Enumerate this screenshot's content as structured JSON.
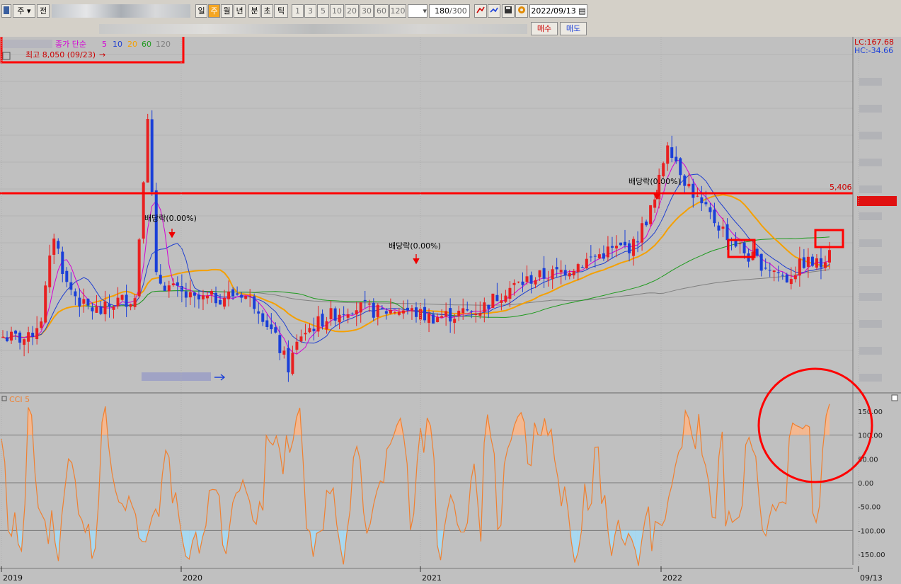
{
  "toolbar": {
    "period_first": "주",
    "prev_label": "전",
    "periods": [
      "일",
      "주",
      "월",
      "년",
      "분",
      "초",
      "틱"
    ],
    "active_period": "주",
    "intervals": [
      "1",
      "3",
      "5",
      "10",
      "20",
      "30",
      "60",
      "120"
    ],
    "count": "180",
    "count_total": "/300",
    "date": "2022/09/13",
    "buy": "매수",
    "sell": "매도"
  },
  "legend": {
    "ma_title": "종가 단순",
    "ma_periods": [
      {
        "label": "5",
        "color": "#d400d4"
      },
      {
        "label": "10",
        "color": "#1f3fd0"
      },
      {
        "label": "20",
        "color": "#f5a000"
      },
      {
        "label": "60",
        "color": "#1f9a1f"
      },
      {
        "label": "120",
        "color": "#808080"
      }
    ],
    "high_note": "최고 8,050 (09/23)",
    "arrow_glyph": "→"
  },
  "indicators": {
    "lc": "LC:167.68",
    "hc": "HC:-34.66",
    "cci_title": "CCI 5"
  },
  "colors": {
    "up": "#e82020",
    "down": "#1a3fd8",
    "cci_line": "#f08030",
    "cci_high": "#f5b890",
    "cci_low": "#a8d8f0",
    "annotation": "#ff0000"
  },
  "chart_data": [
    {
      "type": "candlestick",
      "title": "",
      "price_line": {
        "value": 5406,
        "label": "5,406"
      },
      "annotations": [
        {
          "text": "배당락(0.00%)",
          "date": "2019-10-22"
        },
        {
          "text": "배당락(0.00%)",
          "date": "2020-12-22"
        },
        {
          "text": "배당락(0.00%)",
          "date": "2021-09-28"
        }
      ],
      "x_ticks": [
        "2019",
        "2020",
        "2021",
        "2022",
        "09/13"
      ],
      "y_tick_labels_blurred": true,
      "ma_periods": [
        5,
        10,
        20,
        60,
        120
      ]
    },
    {
      "type": "line",
      "title": "CCI 5",
      "y_ticks": [
        "150.00",
        "100.00",
        "50.00",
        "0.00",
        "-50.00",
        "-100.00",
        "-150.00"
      ],
      "ylim": [
        -175,
        175
      ],
      "values": [
        92,
        44,
        -100,
        -112,
        -62,
        -128,
        -143,
        -45,
        158,
        142,
        21,
        -52,
        -66,
        -80,
        -128,
        -58,
        -125,
        -164,
        -69,
        -8,
        50,
        42,
        6,
        -65,
        -78,
        -104,
        -86,
        -159,
        -137,
        -38,
        127,
        160,
        75,
        20,
        -16,
        -40,
        -44,
        -58,
        -28,
        -48,
        -66,
        -115,
        -123,
        -124,
        -98,
        -70,
        -55,
        -71,
        18,
        68,
        54,
        -43,
        -20,
        -75,
        -120,
        -154,
        -160,
        -122,
        -104,
        -148,
        -114,
        -90,
        -16,
        -14,
        -15,
        -28,
        -130,
        -149,
        -95,
        -42,
        -22,
        -17,
        6,
        -18,
        -38,
        -78,
        -87,
        -40,
        -58,
        99,
        86,
        79,
        98,
        68,
        18,
        99,
        63,
        89,
        136,
        157,
        44,
        -96,
        -102,
        -155,
        -106,
        -102,
        -98,
        -16,
        -23,
        -11,
        -87,
        -130,
        -171,
        -107,
        -58,
        53,
        76,
        48,
        -61,
        -106,
        -86,
        -46,
        -17,
        4,
        0,
        71,
        81,
        99,
        121,
        135,
        96,
        40,
        -99,
        -65,
        45,
        115,
        63,
        136,
        119,
        51,
        -130,
        -162,
        -99,
        -58,
        -26,
        -45,
        -87,
        -103,
        -103,
        -84,
        3,
        40,
        -35,
        -123,
        84,
        143,
        94,
        61,
        -98,
        -89,
        39,
        72,
        89,
        120,
        138,
        147,
        126,
        40,
        36,
        126,
        101,
        99,
        135,
        99,
        112,
        48,
        10,
        -49,
        -8,
        -57,
        -124,
        -167,
        -146,
        -101,
        -2,
        -57,
        -43,
        74,
        75,
        -44,
        -26,
        -106,
        -153,
        -109,
        -78,
        -116,
        -130,
        -106,
        -118,
        -140,
        -174,
        -121,
        -76,
        -50,
        -143,
        -81,
        -85,
        -90,
        -76,
        -31,
        -4,
        35,
        64,
        75,
        151,
        135,
        98,
        71,
        144,
        58,
        37,
        0,
        -72,
        -74,
        55,
        107,
        -91,
        -60,
        -83,
        -77,
        -72,
        -47,
        80,
        95,
        70,
        55,
        -31,
        -99,
        -111,
        -74,
        -46,
        -59,
        -42,
        -40,
        -44,
        95,
        125,
        120,
        117,
        113,
        121,
        117,
        -63,
        -83,
        -49,
        72,
        141,
        165
      ]
    }
  ]
}
